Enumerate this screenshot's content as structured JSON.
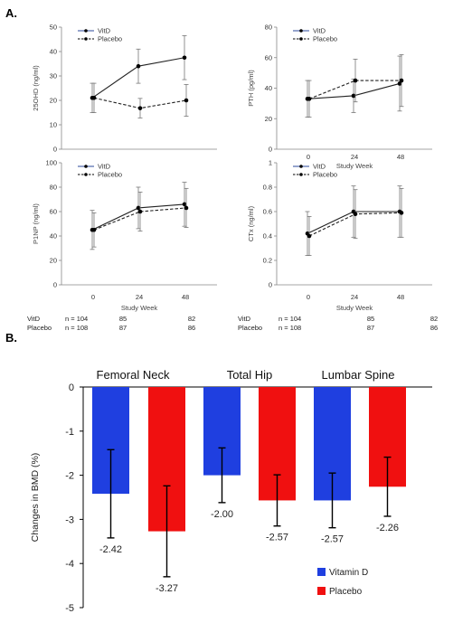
{
  "panel_a": {
    "label": "A."
  },
  "panel_b": {
    "label": "B."
  },
  "study_week_label": "Study Week",
  "n_table": {
    "rows": [
      {
        "name": "VitD",
        "values": [
          "n = 104",
          "85",
          "82"
        ]
      },
      {
        "name": "Placebo",
        "values": [
          "n = 108",
          "87",
          "86"
        ]
      }
    ]
  },
  "chart_data": [
    {
      "type": "line",
      "ylabel": "25OHD (ng/ml)",
      "x": [
        0,
        24,
        48
      ],
      "ylim": [
        0,
        50
      ],
      "yticks": [
        "0",
        "10",
        "20",
        "30",
        "40",
        "50"
      ],
      "xticks": [],
      "show_xlabel": false,
      "series": [
        {
          "name": "VitD",
          "values": [
            21,
            34,
            37.5
          ],
          "err": [
            6,
            7,
            9
          ],
          "style": "solid"
        },
        {
          "name": "Placebo",
          "values": [
            21,
            16.8,
            20
          ],
          "err": [
            6,
            4,
            6.5
          ],
          "style": "dashed"
        }
      ]
    },
    {
      "type": "line",
      "ylabel": "PTH (pg/ml)",
      "x": [
        0,
        24,
        48
      ],
      "ylim": [
        0,
        80
      ],
      "yticks": [
        "0",
        "20",
        "40",
        "60",
        "80"
      ],
      "xticks": [
        "0",
        "24",
        "48"
      ],
      "show_xlabel": true,
      "series": [
        {
          "name": "VitD",
          "values": [
            33,
            35,
            43
          ],
          "err": [
            12,
            11,
            18
          ],
          "style": "solid"
        },
        {
          "name": "Placebo",
          "values": [
            33,
            45,
            45
          ],
          "err": [
            12,
            14,
            17
          ],
          "style": "dashed"
        }
      ]
    },
    {
      "type": "line",
      "ylabel": "P1NP (ng/ml)",
      "x": [
        0,
        24,
        48
      ],
      "ylim": [
        0,
        100
      ],
      "yticks": [
        "0",
        "20",
        "40",
        "60",
        "80",
        "100"
      ],
      "xticks": [
        "0",
        "24",
        "48"
      ],
      "show_xlabel": true,
      "series": [
        {
          "name": "VitD",
          "values": [
            45,
            63,
            66
          ],
          "err": [
            16,
            17,
            18
          ],
          "style": "solid"
        },
        {
          "name": "Placebo",
          "values": [
            45,
            60,
            63
          ],
          "err": [
            14,
            16,
            16
          ],
          "style": "dashed"
        }
      ]
    },
    {
      "type": "line",
      "ylabel": "CTx (ng/ml)",
      "x": [
        0,
        24,
        48
      ],
      "ylim": [
        0,
        1
      ],
      "yticks": [
        "0",
        "0.2",
        "0.4",
        "0.6",
        "0.8",
        "1"
      ],
      "xticks": [
        "0",
        "24",
        "48"
      ],
      "show_xlabel": true,
      "series": [
        {
          "name": "VitD",
          "values": [
            0.42,
            0.6,
            0.6
          ],
          "err": [
            0.18,
            0.21,
            0.21
          ],
          "style": "solid"
        },
        {
          "name": "Placebo",
          "values": [
            0.4,
            0.58,
            0.59
          ],
          "err": [
            0.16,
            0.2,
            0.2
          ],
          "style": "dashed"
        }
      ]
    },
    {
      "type": "bar",
      "ylabel": "Changes in BMD (%)",
      "categories": [
        "Femoral Neck",
        "Total Hip",
        "Lumbar Spine"
      ],
      "ylim": [
        -5,
        0
      ],
      "yticks": [
        "0",
        "-1",
        "-2",
        "-3",
        "-4",
        "-5"
      ],
      "series": [
        {
          "name": "Vitamin D",
          "color": "#1f3fe0",
          "values": [
            -2.42,
            -2.0,
            -2.57
          ],
          "err": [
            1.0,
            0.62,
            0.62
          ]
        },
        {
          "name": "Placebo",
          "color": "#f01010",
          "values": [
            -3.27,
            -2.57,
            -2.26
          ],
          "err": [
            1.03,
            0.58,
            0.67
          ]
        }
      ],
      "value_labels": [
        [
          "-2.42",
          "-2.00",
          "-2.57"
        ],
        [
          "-3.27",
          "-2.57",
          "-2.26"
        ]
      ],
      "legend": "bottom-right"
    }
  ]
}
